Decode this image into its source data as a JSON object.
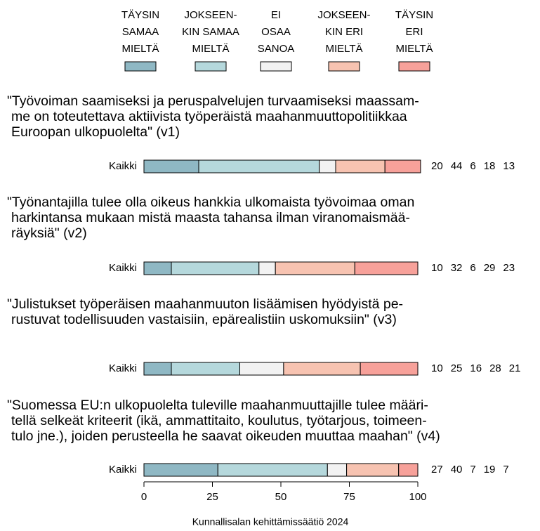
{
  "chart_data": {
    "type": "stacked-bar",
    "orientation": "horizontal",
    "series": [
      {
        "name": [
          "TÄYSIN",
          "SAMAA",
          "MIELTÄ"
        ],
        "color": "#8fb8c4",
        "values": [
          20,
          10,
          10,
          27
        ]
      },
      {
        "name": [
          "JOKSEEN-",
          "KIN SAMAA",
          "MIELTÄ"
        ],
        "color": "#b5d8dc",
        "values": [
          44,
          32,
          25,
          40
        ]
      },
      {
        "name": [
          "EI",
          "OSAA",
          "SANOA"
        ],
        "color": "#f2f2f2",
        "values": [
          6,
          6,
          16,
          7
        ]
      },
      {
        "name": [
          "JOKSEEN-",
          "KIN ERI",
          "MIELTÄ"
        ],
        "color": "#f7c3b1",
        "values": [
          18,
          29,
          28,
          19
        ]
      },
      {
        "name": [
          "TÄYSIN",
          "ERI",
          "MIELTÄ"
        ],
        "color": "#f7a19a",
        "values": [
          13,
          23,
          21,
          7
        ]
      }
    ],
    "questions": [
      [
        "\"Työvoiman saamiseksi ja peruspalvelujen turvaamiseksi maassam-",
        "me on toteutettava aktiivista työperäistä maahanmuuttopolitiikkaa",
        "Euroopan ulkopuolelta\" (v1)"
      ],
      [
        "\"Työnantajilla tulee olla oikeus hankkia ulkomaista työvoimaa oman",
        "harkintansa mukaan mistä maasta tahansa ilman viranomaismää-",
        "räyksiä\" (v2)"
      ],
      [
        "\"Julistukset työperäisen maahanmuuton lisäämisen hyödyistä pe-",
        "rustuvat todellisuuden vastaisiin, epärealistiin uskomuksiin\" (v3)"
      ],
      [
        "\"Suomessa EU:n ulkopuolelta tuleville maahanmuuttajille tulee määri-",
        "tellä selkeät kriteerit (ikä, ammattitaito, koulutus, työtarjous, toimeen-",
        "tulo jne.), joiden perusteella he saavat oikeuden muuttaa maahan\" (v4)"
      ]
    ],
    "row_label": "Kaikki",
    "xlim": [
      0,
      100
    ],
    "xticks": [
      0,
      25,
      50,
      75,
      100
    ],
    "caption": "Kunnallisalan kehittämissäätiö 2024"
  }
}
